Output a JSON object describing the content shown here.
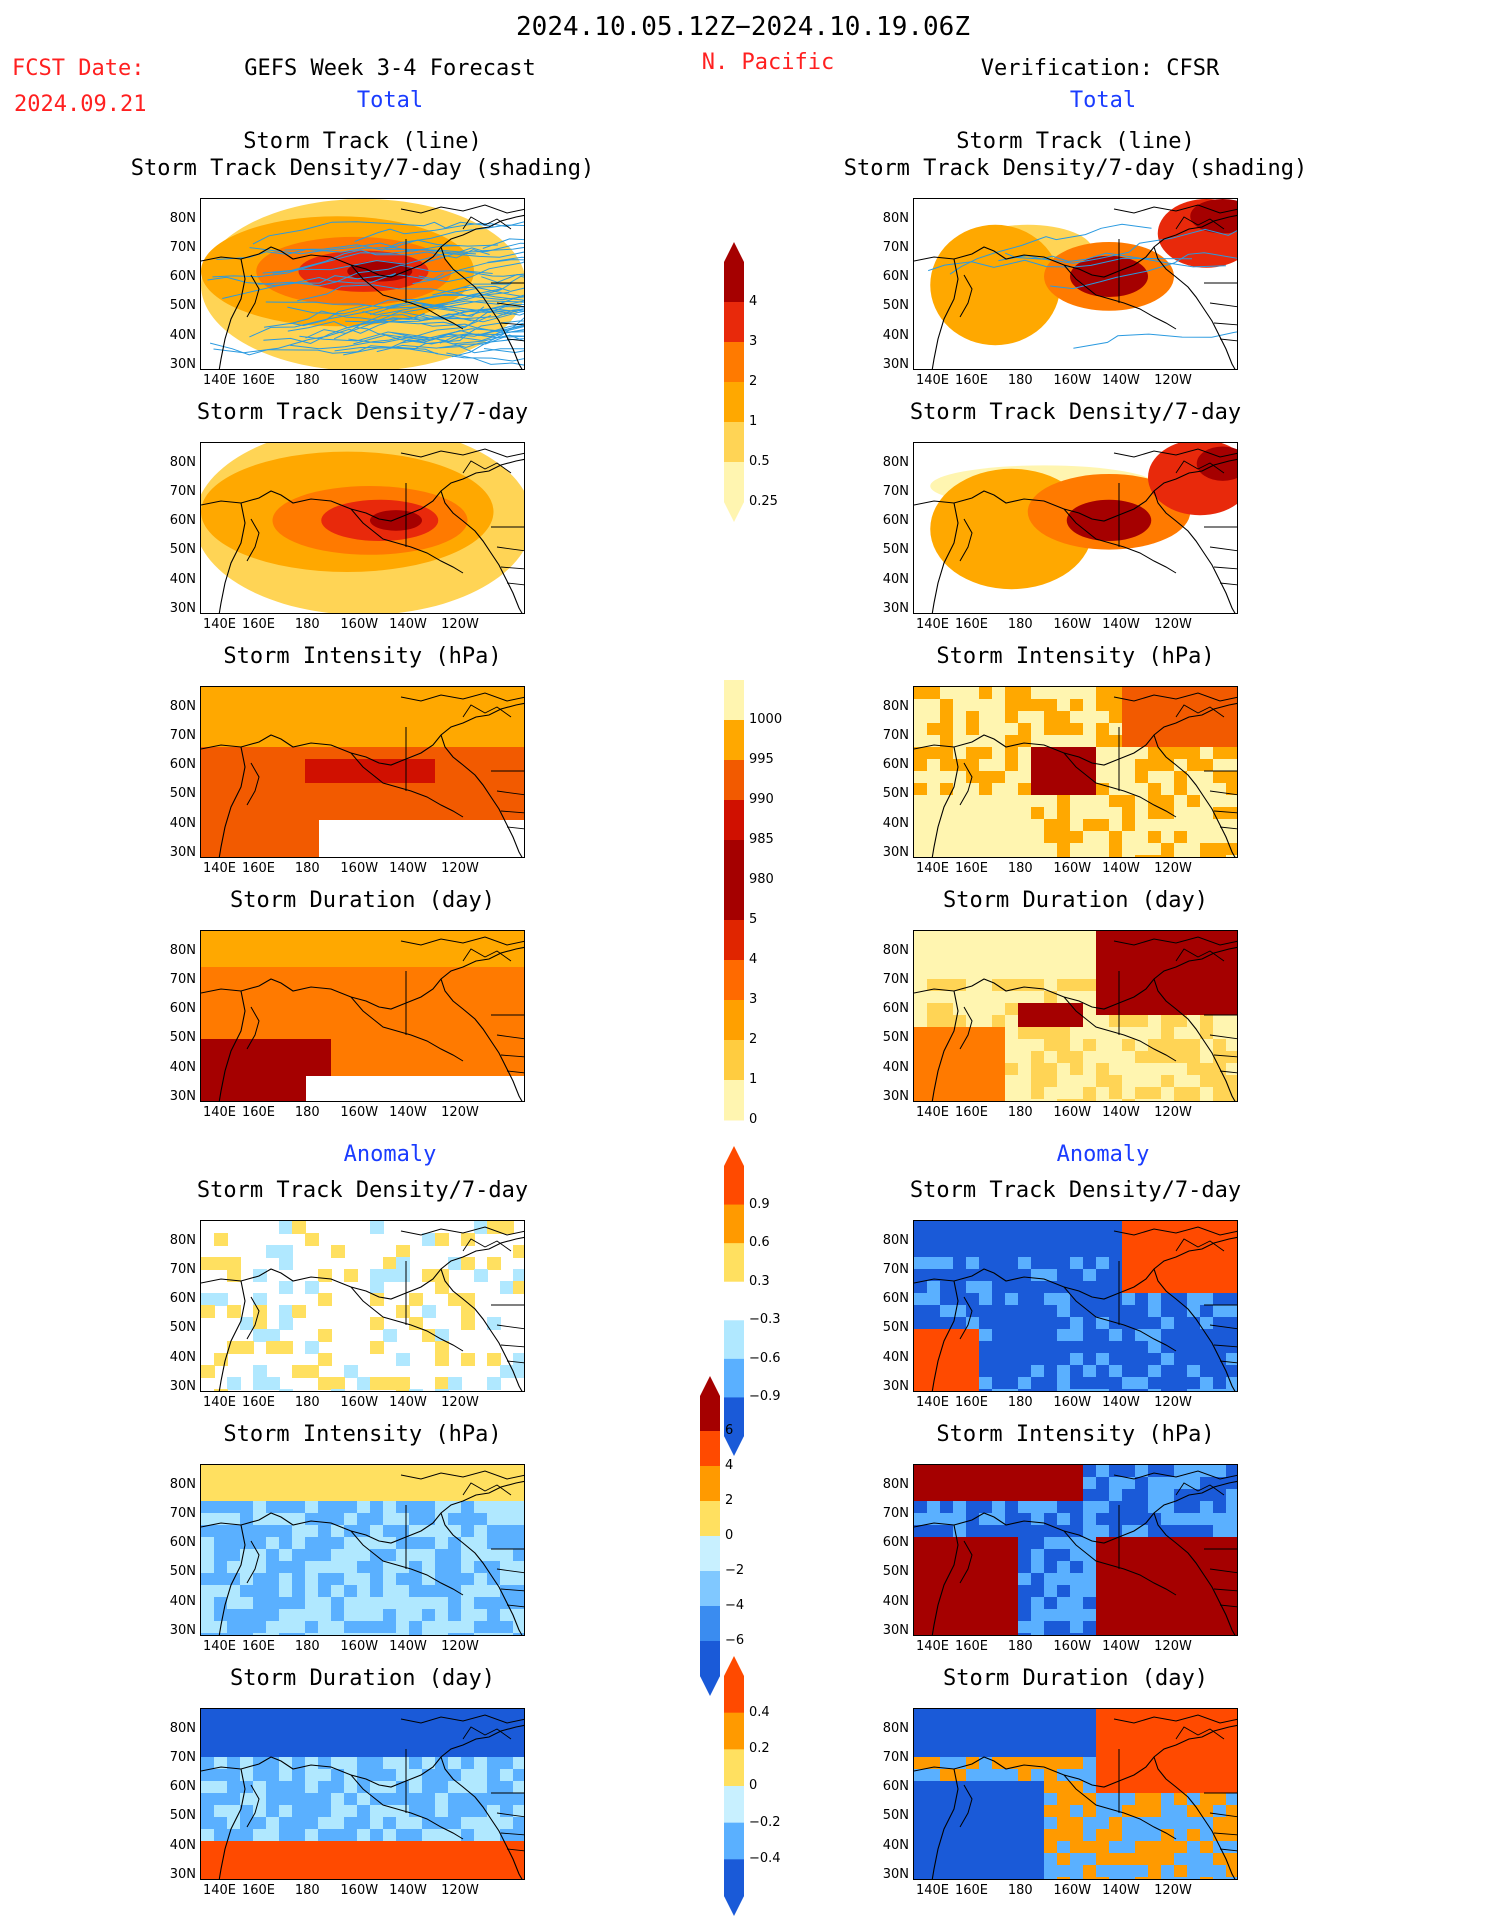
{
  "header": {
    "date_range": "2024.10.05.12Z−2024.10.19.06Z",
    "fcst_label": "FCST Date:",
    "fcst_date": "2024.09.21",
    "left_title": "GEFS Week 3-4 Forecast",
    "region": "N. Pacific",
    "right_title": "Verification: CFSR",
    "total_left": "Total",
    "total_right": "Total",
    "anomaly_left": "Anomaly",
    "anomaly_right": "Anomaly"
  },
  "axes": {
    "lat_labels": [
      "80N",
      "70N",
      "60N",
      "50N",
      "40N",
      "30N"
    ],
    "lon_labels": [
      "140E",
      "160E",
      "180",
      "160W",
      "140W",
      "120W"
    ]
  },
  "panels": {
    "left": [
      {
        "title1": "Storm Track (line)",
        "title2": "Storm Track Density/7-day (shading)"
      },
      {
        "title1": "Storm Track Density/7-day"
      },
      {
        "title1": "Storm Intensity (hPa)"
      },
      {
        "title1": "Storm Duration (day)"
      },
      {
        "title1": "Storm Track Density/7-day"
      },
      {
        "title1": "Storm Intensity (hPa)"
      },
      {
        "title1": "Storm Duration (day)"
      }
    ],
    "right": [
      {
        "title1": "Storm Track (line)",
        "title2": "Storm Track Density/7-day (shading)"
      },
      {
        "title1": "Storm Track Density/7-day"
      },
      {
        "title1": "Storm Intensity (hPa)"
      },
      {
        "title1": "Storm Duration (day)"
      },
      {
        "title1": "Storm Track Density/7-day"
      },
      {
        "title1": "Storm Intensity (hPa)"
      },
      {
        "title1": "Storm Duration (day)"
      }
    ]
  },
  "colorbars": [
    {
      "name": "density",
      "labels": [
        "4",
        "3",
        "2",
        "1",
        "0.5",
        "0.25"
      ],
      "colors": [
        "#a50000",
        "#e8290b",
        "#ff7a00",
        "#ffa800",
        "#ffd455",
        "#fff5b0"
      ]
    },
    {
      "name": "intensity",
      "labels": [
        "1000",
        "995",
        "990",
        "985",
        "980"
      ],
      "colors": [
        "#fff5b0",
        "#ffa800",
        "#f25a00",
        "#d01000",
        "#a50000"
      ]
    },
    {
      "name": "duration",
      "labels": [
        "5",
        "4",
        "3",
        "2",
        "1",
        "0"
      ],
      "colors": [
        "#a50000",
        "#e02500",
        "#ff6a00",
        "#ffa000",
        "#ffcc40",
        "#fff5b0"
      ]
    },
    {
      "name": "anom-density",
      "labels": [
        "0.9",
        "0.6",
        "0.3",
        "−0.3",
        "−0.6",
        "−0.9"
      ],
      "colors": [
        "#ff4a00",
        "#ff9a00",
        "#ffe060",
        "#ffffff",
        "#b0e8ff",
        "#5ab0ff",
        "#1a5ad8"
      ]
    },
    {
      "name": "anom-intensity",
      "labels": [
        "6",
        "4",
        "2",
        "0",
        "−2",
        "−4",
        "−6"
      ],
      "colors": [
        "#a50000",
        "#ff4a00",
        "#ff9a00",
        "#ffe060",
        "#c8f0ff",
        "#80c8ff",
        "#3a8cf0",
        "#1a5ad8"
      ]
    },
    {
      "name": "anom-duration",
      "labels": [
        "0.4",
        "0.2",
        "0",
        "−0.2",
        "−0.4"
      ],
      "colors": [
        "#ff4a00",
        "#ff9a00",
        "#ffe060",
        "#c8f0ff",
        "#5ab0ff",
        "#1a5ad8"
      ]
    }
  ],
  "colors": {
    "red_text": "#ff2020",
    "blue_text": "#1a3cff",
    "track_line": "#2a9ae0"
  }
}
